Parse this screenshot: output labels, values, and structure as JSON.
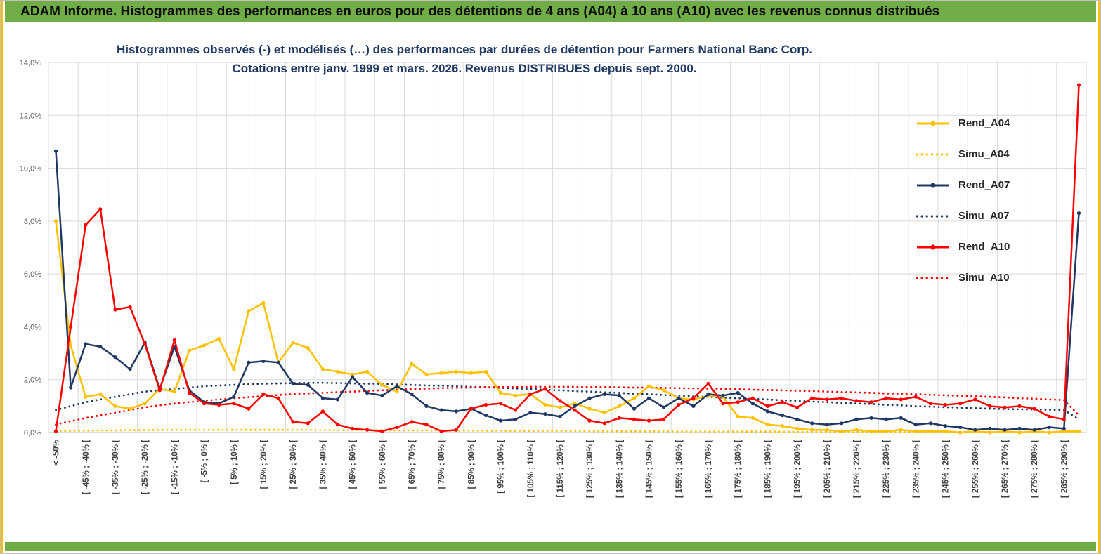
{
  "page": {
    "banner": "ADAM Informe. Histogrammes des performances en euros pour des détentions de 4 ans (A04) à 10 ans (A10) avec les revenus connus distribués",
    "colors": {
      "banner_green": "#70AD47",
      "edge_yellow": "#FFC000",
      "grid_gray": "#D9D9D9",
      "axis_text_gray": "#595959",
      "title_navy": "#1F3864",
      "series_gold": "#FFC000",
      "series_navy": "#203864",
      "series_red": "#FF0000"
    }
  },
  "chart_data": {
    "type": "line",
    "title_line1": "Histogrammes observés (-) et modélisés (…) des performances par durées de détention pour Farmers National Banc Corp.",
    "title_line2": "Cotations entre janv. 1999 et mars. 2026. Revenus DISTRIBUES depuis sept. 2000.",
    "ylabel": "",
    "ylim": [
      0,
      14
    ],
    "y_tick_step": 2,
    "y_ticks": [
      "0,0%",
      "2,0%",
      "4,0%",
      "6,0%",
      "8,0%",
      "10,0%",
      "12,0%",
      "14,0%"
    ],
    "grid": true,
    "legend_position": "right-inside",
    "n_points": 70,
    "label_every_n_points": 2,
    "x_bin_width_pct": 5,
    "x_labels": [
      "< -50%",
      "[ -45% ; -40% [",
      "[ -35% ; -30% [",
      "[ -25% ; -20% [",
      "[ -15% ; -10% [",
      "[ -5% ; 0% [",
      "[ 5% ; 10% [",
      "[ 15% ; 20% [",
      "[ 25% ; 30% [",
      "[ 35% ; 40% [",
      "[ 45% ; 50% [",
      "[ 55% ; 60% [",
      "[ 65% ; 70% [",
      "[ 75% ; 80% [",
      "[ 85% ; 90% [",
      "[ 95% ; 100% [",
      "[ 105% ; 110% [",
      "[ 115% ; 120% [",
      "[ 125% ; 130% [",
      "[ 135% ; 140% [",
      "[ 145% ; 150% [",
      "[ 155% ; 160% [",
      "[ 165% ; 170% [",
      "[ 175% ; 180% [",
      "[ 185% ; 190% [",
      "[ 195% ; 200% [",
      "[ 205% ; 210% [",
      "[ 215% ; 220% [",
      "[ 225% ; 230% [",
      "[ 235% ; 240% [",
      "[ 245% ; 250% [",
      "[ 255% ; 260% [",
      "[ 265% ; 270% [",
      "[ 275% ; 280% [",
      "[ 285% ; 290% ["
    ],
    "series": [
      {
        "name": "Rend_A04",
        "color": "#FFC000",
        "style": "solid",
        "values": [
          8.0,
          3.3,
          1.35,
          1.45,
          1.0,
          0.9,
          1.1,
          1.65,
          1.55,
          3.1,
          3.3,
          3.55,
          2.4,
          4.6,
          4.9,
          2.65,
          3.4,
          3.2,
          2.4,
          2.3,
          2.2,
          2.3,
          1.8,
          1.55,
          2.6,
          2.2,
          2.25,
          2.3,
          2.25,
          2.3,
          1.5,
          1.4,
          1.45,
          1.05,
          0.95,
          1.1,
          0.9,
          0.75,
          1.0,
          1.3,
          1.75,
          1.6,
          1.3,
          1.25,
          1.4,
          1.35,
          0.6,
          0.55,
          0.3,
          0.25,
          0.15,
          0.1,
          0.1,
          0.05,
          0.1,
          0.05,
          0.05,
          0.1,
          0.05,
          0.05,
          0.05,
          0.0,
          0.05,
          0.0,
          0.05,
          0.0,
          0.05,
          0.0,
          0.05,
          0.05
        ]
      },
      {
        "name": "Simu_A04",
        "color": "#FFC000",
        "style": "dotted",
        "values": [
          0.05,
          0.06,
          0.07,
          0.08,
          0.08,
          0.09,
          0.09,
          0.1,
          0.1,
          0.1,
          0.1,
          0.1,
          0.1,
          0.1,
          0.1,
          0.1,
          0.1,
          0.1,
          0.09,
          0.09,
          0.09,
          0.09,
          0.08,
          0.08,
          0.08,
          0.08,
          0.07,
          0.07,
          0.07,
          0.07,
          0.07,
          0.06,
          0.06,
          0.06,
          0.06,
          0.06,
          0.05,
          0.05,
          0.05,
          0.05,
          0.05,
          0.05,
          0.04,
          0.04,
          0.04,
          0.04,
          0.04,
          0.04,
          0.04,
          0.03,
          0.03,
          0.03,
          0.03,
          0.03,
          0.03,
          0.03,
          0.03,
          0.02,
          0.02,
          0.02,
          0.02,
          0.02,
          0.02,
          0.02,
          0.02,
          0.02,
          0.02,
          0.02,
          0.02,
          0.02
        ]
      },
      {
        "name": "Rend_A07",
        "color": "#203864",
        "style": "solid",
        "values": [
          10.65,
          1.7,
          3.35,
          3.25,
          2.85,
          2.4,
          3.4,
          1.65,
          3.25,
          1.6,
          1.15,
          1.1,
          1.35,
          2.65,
          2.7,
          2.65,
          1.85,
          1.8,
          1.3,
          1.25,
          2.1,
          1.5,
          1.4,
          1.75,
          1.45,
          1.0,
          0.85,
          0.8,
          0.9,
          0.65,
          0.45,
          0.5,
          0.75,
          0.7,
          0.6,
          1.0,
          1.3,
          1.45,
          1.4,
          0.9,
          1.3,
          0.95,
          1.3,
          1.0,
          1.45,
          1.4,
          1.5,
          1.1,
          0.8,
          0.65,
          0.5,
          0.35,
          0.3,
          0.35,
          0.5,
          0.55,
          0.5,
          0.55,
          0.3,
          0.35,
          0.25,
          0.2,
          0.1,
          0.15,
          0.1,
          0.15,
          0.1,
          0.2,
          0.15,
          8.3
        ]
      },
      {
        "name": "Simu_A07",
        "color": "#203864",
        "style": "dotted",
        "values": [
          0.85,
          1.0,
          1.15,
          1.25,
          1.35,
          1.45,
          1.55,
          1.6,
          1.65,
          1.7,
          1.75,
          1.78,
          1.8,
          1.83,
          1.85,
          1.86,
          1.87,
          1.88,
          1.88,
          1.87,
          1.86,
          1.85,
          1.84,
          1.82,
          1.8,
          1.78,
          1.77,
          1.75,
          1.73,
          1.71,
          1.69,
          1.67,
          1.65,
          1.62,
          1.6,
          1.57,
          1.55,
          1.52,
          1.5,
          1.47,
          1.45,
          1.42,
          1.4,
          1.37,
          1.35,
          1.32,
          1.3,
          1.27,
          1.25,
          1.22,
          1.2,
          1.17,
          1.15,
          1.12,
          1.1,
          1.08,
          1.05,
          1.03,
          1.0,
          0.98,
          0.96,
          0.94,
          0.92,
          0.9,
          0.89,
          0.88,
          0.87,
          0.86,
          0.85,
          0.5
        ]
      },
      {
        "name": "Rend_A10",
        "color": "#FF0000",
        "style": "solid",
        "values": [
          0.05,
          4.0,
          7.85,
          8.45,
          4.65,
          4.75,
          3.35,
          1.6,
          3.5,
          1.5,
          1.1,
          1.05,
          1.1,
          0.9,
          1.45,
          1.3,
          0.4,
          0.35,
          0.8,
          0.3,
          0.15,
          0.1,
          0.05,
          0.2,
          0.4,
          0.3,
          0.05,
          0.1,
          0.9,
          1.05,
          1.1,
          0.85,
          1.45,
          1.65,
          1.2,
          0.85,
          0.45,
          0.35,
          0.55,
          0.5,
          0.45,
          0.5,
          1.05,
          1.3,
          1.85,
          1.1,
          1.15,
          1.3,
          1.0,
          1.15,
          0.95,
          1.3,
          1.25,
          1.3,
          1.2,
          1.15,
          1.3,
          1.25,
          1.35,
          1.1,
          1.05,
          1.1,
          1.25,
          1.0,
          0.95,
          1.0,
          0.9,
          0.6,
          0.5,
          13.15
        ]
      },
      {
        "name": "Simu_A10",
        "color": "#FF0000",
        "style": "dotted",
        "values": [
          0.3,
          0.43,
          0.55,
          0.65,
          0.75,
          0.85,
          0.95,
          1.03,
          1.1,
          1.15,
          1.2,
          1.25,
          1.3,
          1.34,
          1.38,
          1.42,
          1.45,
          1.48,
          1.5,
          1.53,
          1.55,
          1.58,
          1.6,
          1.63,
          1.65,
          1.66,
          1.68,
          1.69,
          1.7,
          1.71,
          1.72,
          1.72,
          1.73,
          1.73,
          1.73,
          1.73,
          1.72,
          1.72,
          1.71,
          1.7,
          1.7,
          1.69,
          1.68,
          1.67,
          1.66,
          1.65,
          1.64,
          1.62,
          1.61,
          1.6,
          1.58,
          1.57,
          1.55,
          1.53,
          1.52,
          1.5,
          1.48,
          1.47,
          1.45,
          1.43,
          1.41,
          1.39,
          1.37,
          1.35,
          1.33,
          1.3,
          1.28,
          1.25,
          1.23,
          0.65
        ]
      }
    ]
  }
}
